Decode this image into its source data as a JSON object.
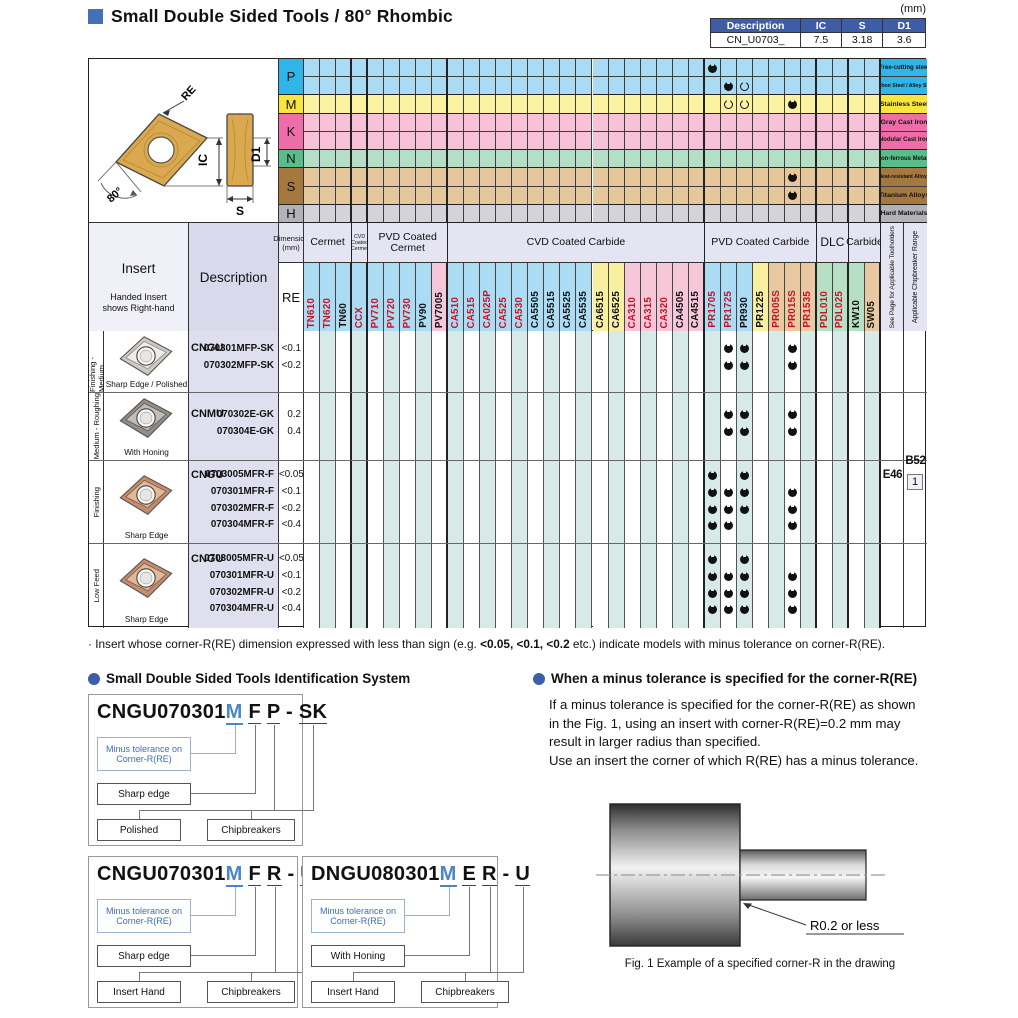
{
  "page": {
    "title": "Small Double Sided Tools / 80° Rhombic",
    "unit": "(mm)"
  },
  "spec": {
    "headers": [
      "Description",
      "IC",
      "S",
      "D1"
    ],
    "values": [
      "CN_U0703_",
      "7.5",
      "3.18",
      "3.6"
    ]
  },
  "diagram": {
    "re": "RE",
    "ic": "IC",
    "d1": "D1",
    "s": "S",
    "angle": "80°"
  },
  "top_grid": {
    "classes": [
      {
        "code": "P",
        "label_bg": "#2fb5e8",
        "band_bg": "#a9dcf4",
        "rows": [
          {
            "name": "Free-cutting steel",
            "marks": [
              {
                "grade": "PR1705",
                "type": "filled"
              }
            ]
          },
          {
            "name": "Carbon Steel / Alloy Steel",
            "marks": [
              {
                "grade": "PR1725",
                "type": "filled"
              },
              {
                "grade": "PR930",
                "type": "open"
              }
            ]
          }
        ]
      },
      {
        "code": "M",
        "label_bg": "#f8e63e",
        "band_bg": "#fbf2a2",
        "rows": [
          {
            "name": "Stainless Steel",
            "marks": [
              {
                "grade": "PR1725",
                "type": "open"
              },
              {
                "grade": "PR930",
                "type": "open"
              },
              {
                "grade": "PR015S",
                "type": "filled"
              }
            ]
          }
        ]
      },
      {
        "code": "K",
        "label_bg": "#ee6da8",
        "band_bg": "#f7c2d8",
        "rows": [
          {
            "name": "Gray Cast Iron",
            "marks": []
          },
          {
            "name": "Nodular Cast Iron",
            "marks": []
          }
        ]
      },
      {
        "code": "N",
        "label_bg": "#58bd88",
        "band_bg": "#b4dec5",
        "rows": [
          {
            "name": "Non-ferrous Metals",
            "marks": []
          }
        ]
      },
      {
        "code": "S",
        "label_bg": "#a5783f",
        "band_bg": "#e6c69b",
        "rows": [
          {
            "name": "Heat-resistant Alloys",
            "marks": [
              {
                "grade": "PR015S",
                "type": "filled"
              }
            ]
          },
          {
            "name": "Titanium Alloys",
            "marks": [
              {
                "grade": "PR015S",
                "type": "filled"
              }
            ]
          }
        ]
      },
      {
        "code": "H",
        "label_bg": "#b2b2b7",
        "band_bg": "#d4d4d8",
        "rows": [
          {
            "name": "Hard Materials",
            "marks": []
          }
        ]
      }
    ]
  },
  "grade_groups": [
    {
      "label": "Cermet",
      "grades": [
        {
          "name": "TN610",
          "bg": "#abdcf3",
          "color": "#c41425"
        },
        {
          "name": "TN620",
          "bg": "#abdcf3",
          "color": "#c41425"
        },
        {
          "name": "TN60",
          "bg": "#abdcf3",
          "color": "#111111"
        }
      ]
    },
    {
      "label": "CVD Coated Cermet",
      "small": true,
      "grades": [
        {
          "name": "CCX",
          "bg": "#abdcf3",
          "color": "#c41425"
        }
      ]
    },
    {
      "label": "PVD Coated Cermet",
      "grades": [
        {
          "name": "PV710",
          "bg": "#abdcf3",
          "color": "#c41425"
        },
        {
          "name": "PV720",
          "bg": "#abdcf3",
          "color": "#c41425"
        },
        {
          "name": "PV730",
          "bg": "#abdcf3",
          "color": "#c41425"
        },
        {
          "name": "PV90",
          "bg": "#abdcf3",
          "color": "#111111"
        },
        {
          "name": "PV7005",
          "bg": "#f6c6d9",
          "color": "#111111"
        }
      ]
    },
    {
      "label": "CVD Coated Carbide",
      "grades": [
        {
          "name": "CA510",
          "bg": "#abdcf3",
          "color": "#c41425"
        },
        {
          "name": "CA515",
          "bg": "#abdcf3",
          "color": "#c41425"
        },
        {
          "name": "CA025P",
          "bg": "#abdcf3",
          "color": "#c41425"
        },
        {
          "name": "CA525",
          "bg": "#abdcf3",
          "color": "#c41425"
        },
        {
          "name": "CA530",
          "bg": "#abdcf3",
          "color": "#c41425"
        },
        {
          "name": "CA5505",
          "bg": "#abdcf3",
          "color": "#111111"
        },
        {
          "name": "CA5515",
          "bg": "#abdcf3",
          "color": "#111111"
        },
        {
          "name": "CA5525",
          "bg": "#abdcf3",
          "color": "#111111"
        },
        {
          "name": "CA5535",
          "bg": "#abdcf3",
          "color": "#111111"
        },
        {
          "name": "CA6515",
          "bg": "#f8f0a0",
          "color": "#111111"
        },
        {
          "name": "CA6525",
          "bg": "#f8f0a0",
          "color": "#111111"
        },
        {
          "name": "CA310",
          "bg": "#f6c6d9",
          "color": "#c41425"
        },
        {
          "name": "CA315",
          "bg": "#f6c6d9",
          "color": "#c41425"
        },
        {
          "name": "CA320",
          "bg": "#f6c6d9",
          "color": "#c41425"
        },
        {
          "name": "CA4505",
          "bg": "#f6c6d9",
          "color": "#111111"
        },
        {
          "name": "CA4515",
          "bg": "#f6c6d9",
          "color": "#111111"
        }
      ]
    },
    {
      "label": "PVD Coated Carbide",
      "grades": [
        {
          "name": "PR1705",
          "bg": "#abdcf3",
          "color": "#c41425"
        },
        {
          "name": "PR1725",
          "bg": "#abdcf3",
          "color": "#c41425"
        },
        {
          "name": "PR930",
          "bg": "#abdcf3",
          "color": "#111111"
        },
        {
          "name": "PR1225",
          "bg": "#f8f0a0",
          "color": "#111111"
        },
        {
          "name": "PR005S",
          "bg": "#e9c9a1",
          "color": "#c41425"
        },
        {
          "name": "PR015S",
          "bg": "#e9c9a1",
          "color": "#c41425"
        },
        {
          "name": "PR1535",
          "bg": "#e9c9a1",
          "color": "#c41425"
        }
      ]
    },
    {
      "label": "DLC",
      "grades": [
        {
          "name": "PDL010",
          "bg": "#b7dfc4",
          "color": "#c41425"
        },
        {
          "name": "PDL025",
          "bg": "#b7dfc4",
          "color": "#c41425"
        }
      ]
    },
    {
      "label": "Carbide",
      "grades": [
        {
          "name": "KW10",
          "bg": "#b7dfc4",
          "color": "#111111"
        },
        {
          "name": "SW05",
          "bg": "#e9c9a1",
          "color": "#111111"
        }
      ]
    }
  ],
  "header": {
    "insert": "Insert",
    "insert_sub": "Handed Insert\nshows Right-hand",
    "description": "Description",
    "dimension": "Dimension\n(mm)",
    "re": "RE",
    "see_page": "See Page for Applicable Toolholders",
    "chip_range": "Applicable Chipbreaker Range"
  },
  "body": {
    "rows": [
      {
        "machining": "Finishing - Medium",
        "caption": "Sharp Edge / Polished",
        "photo": "silver",
        "series": "CNGU",
        "items": [
          {
            "code": "070301MFP-SK",
            "re": "<0.1",
            "grades": [
              "PR1725",
              "PR930",
              "PR015S"
            ]
          },
          {
            "code": "070302MFP-SK",
            "re": "<0.2",
            "grades": [
              "PR1725",
              "PR930",
              "PR015S"
            ]
          }
        ]
      },
      {
        "machining": "Medium - Roughing",
        "caption": "With Honing",
        "photo": "dark",
        "series": "CNMU",
        "items": [
          {
            "code": "070302E-GK",
            "re": "0.2",
            "grades": [
              "PR1725",
              "PR930",
              "PR015S"
            ]
          },
          {
            "code": "070304E-GK",
            "re": "0.4",
            "grades": [
              "PR1725",
              "PR930",
              "PR015S"
            ]
          }
        ]
      },
      {
        "machining": "Finishing",
        "caption": "Sharp Edge",
        "photo": "copper",
        "series": "CNGU",
        "items": [
          {
            "code": "0703005MFR-F",
            "re": "<0.05",
            "grades": [
              "PR1705",
              "PR930"
            ]
          },
          {
            "code": "070301MFR-F",
            "re": "<0.1",
            "grades": [
              "PR1705",
              "PR1725",
              "PR930",
              "PR015S"
            ]
          },
          {
            "code": "070302MFR-F",
            "re": "<0.2",
            "grades": [
              "PR1705",
              "PR1725",
              "PR930",
              "PR015S"
            ]
          },
          {
            "code": "070304MFR-F",
            "re": "<0.4",
            "grades": [
              "PR1705",
              "PR1725",
              "PR015S"
            ]
          }
        ]
      },
      {
        "machining": "Low Feed",
        "caption": "Sharp Edge",
        "photo": "copper",
        "series": "CNGU",
        "items": [
          {
            "code": "0703005MFR-U",
            "re": "<0.05",
            "grades": [
              "PR1705",
              "PR930"
            ]
          },
          {
            "code": "070301MFR-U",
            "re": "<0.1",
            "grades": [
              "PR1705",
              "PR1725",
              "PR930",
              "PR015S"
            ]
          },
          {
            "code": "070302MFR-U",
            "re": "<0.2",
            "grades": [
              "PR1705",
              "PR1725",
              "PR930",
              "PR015S"
            ]
          },
          {
            "code": "070304MFR-U",
            "re": "<0.4",
            "grades": [
              "PR1705",
              "PR1725",
              "PR930",
              "PR015S"
            ]
          }
        ]
      }
    ],
    "toolholder_page": "E46",
    "chip_code": "B52",
    "chip_num": "1"
  },
  "footnote": {
    "pre": "· Insert whose corner-R(RE) dimension expressed with less than sign (e.g. ",
    "bold": "<0.05, <0.1, <0.2",
    "post": " etc.) indicate models with minus tolerance on corner-R(RE)."
  },
  "id_section": {
    "heading": "Small Double Sided Tools Identification System",
    "boxes": [
      {
        "code_parts": [
          {
            "t": "CNGU070301"
          },
          {
            "t": "M",
            "blue": 1,
            "tgt": 0
          },
          {
            "t": " "
          },
          {
            "t": "F",
            "tgt": 1
          },
          {
            "t": " "
          },
          {
            "t": "P",
            "tgt": 2
          },
          {
            "t": " - "
          },
          {
            "t": "SK",
            "tgt": 3
          }
        ],
        "labels": [
          {
            "text": "Minus tolerance on Corner-R(RE)",
            "blue": 1
          },
          {
            "text": "Sharp edge"
          },
          {
            "text": "Polished"
          },
          {
            "text": "Chipbreakers"
          }
        ]
      },
      {
        "code_parts": [
          {
            "t": "CNGU070301"
          },
          {
            "t": "M",
            "blue": 1,
            "tgt": 0
          },
          {
            "t": " "
          },
          {
            "t": "F",
            "tgt": 1
          },
          {
            "t": " "
          },
          {
            "t": "R",
            "tgt": 2
          },
          {
            "t": " - "
          },
          {
            "t": "U",
            "tgt": 3
          }
        ],
        "labels": [
          {
            "text": "Minus tolerance on Corner-R(RE)",
            "blue": 1
          },
          {
            "text": "Sharp edge"
          },
          {
            "text": "Insert Hand"
          },
          {
            "text": "Chipbreakers"
          }
        ]
      },
      {
        "code_parts": [
          {
            "t": "DNGU080301"
          },
          {
            "t": "M",
            "blue": 1,
            "tgt": 0
          },
          {
            "t": " "
          },
          {
            "t": "E",
            "tgt": 1
          },
          {
            "t": " "
          },
          {
            "t": "R",
            "tgt": 2
          },
          {
            "t": " - "
          },
          {
            "t": "U",
            "tgt": 3
          }
        ],
        "labels": [
          {
            "text": "Minus tolerance on Corner-R(RE)",
            "blue": 1
          },
          {
            "text": "With Honing"
          },
          {
            "text": "Insert Hand"
          },
          {
            "text": "Chipbreakers"
          }
        ]
      }
    ]
  },
  "tol_section": {
    "heading": "When a minus tolerance is specified for the corner-R(RE)",
    "paragraph": "If a minus tolerance is specified for the corner-R(RE) as shown\nin the Fig. 1, using an insert with corner-R(RE)=0.2 mm may\nresult in larger radius than specified.\nUse an insert the corner of which R(RE) has a minus tolerance.",
    "figure_label": "R0.2 or less",
    "caption": "Fig. 1  Example of a specified corner-R in the drawing"
  }
}
